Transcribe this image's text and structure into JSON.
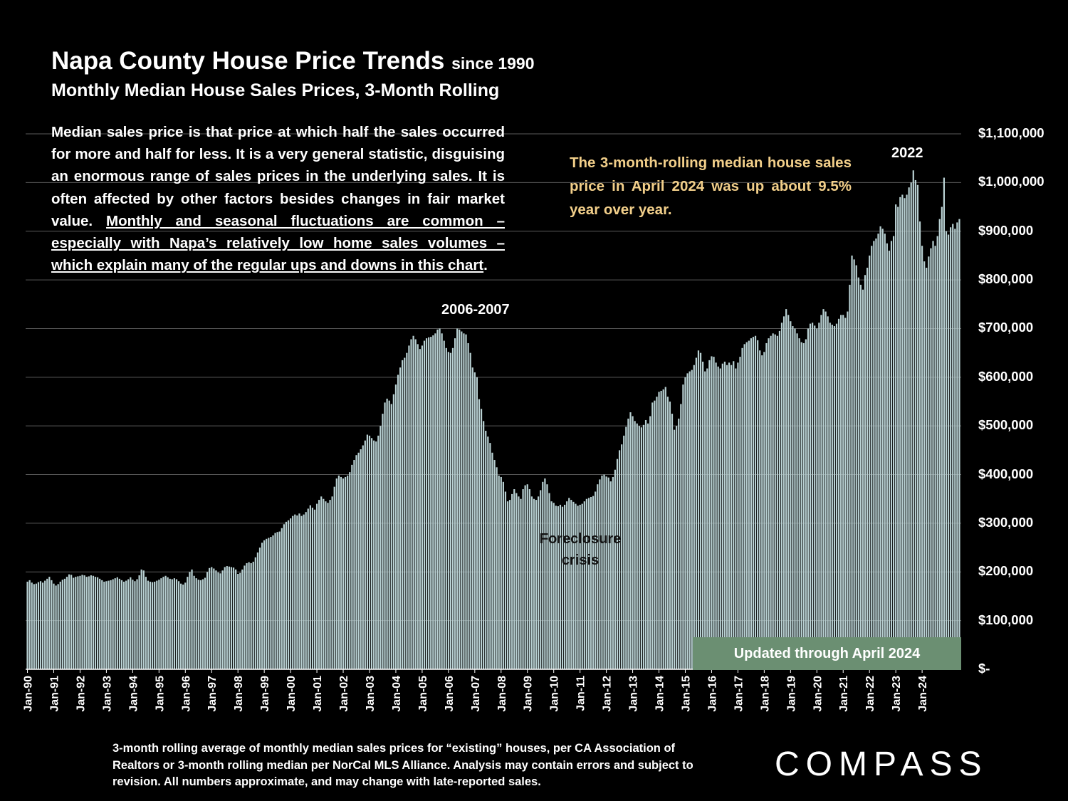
{
  "header": {
    "title": "Napa County House Price Trends",
    "title_suffix": "since 1990",
    "subtitle": "Monthly Median House Sales Prices, 3-Month Rolling"
  },
  "note": {
    "plain": "Median sales price is that price at which half the sales occurred for more and half for less. It is a very general statistic, disguising an enormous range of sales prices in the underlying sales. It is often affected by other factors besides changes in fair market value.",
    "underlined": "Monthly and seasonal fluctuations are common – especially with Napa’s relatively low home sales volumes – which explain many of the regular ups and downs in this chart",
    "end": "."
  },
  "callout": "The 3-month-rolling median house sales price in April 2024 was up about 9.5% year over year.",
  "annotations": {
    "peak_2006": "2006-2007",
    "peak_2022": "2022",
    "foreclosure": "Foreclosure crisis",
    "updated": "Updated through April 2024"
  },
  "footnote": "3-month rolling average of monthly median sales prices for “existing” houses, per CA Association of Realtors or 3-month rolling median per NorCal MLS Alliance. Analysis may contain errors and subject to revision. All numbers approximate, and may change with late-reported sales.",
  "logo": "COMPASS",
  "colors": {
    "background": "#000000",
    "bar": "#b9d1d3",
    "callout": "#f2cf8a",
    "updated_box": "#6b8f72"
  },
  "chart_data": {
    "type": "bar",
    "title": "Napa County House Price Trends since 1990",
    "subtitle": "Monthly Median House Sales Prices, 3-Month Rolling",
    "xlabel": "",
    "ylabel": "",
    "ylim": [
      0,
      1100000
    ],
    "grid": true,
    "x_start": "Jan-90",
    "x_end": "Apr-24",
    "x_ticks": [
      "Jan-90",
      "Jan-91",
      "Jan-92",
      "Jan-93",
      "Jan-94",
      "Jan-95",
      "Jan-96",
      "Jan-97",
      "Jan-98",
      "Jan-99",
      "Jan-00",
      "Jan-01",
      "Jan-02",
      "Jan-03",
      "Jan-04",
      "Jan-05",
      "Jan-06",
      "Jan-07",
      "Jan-08",
      "Jan-09",
      "Jan-10",
      "Jan-11",
      "Jan-12",
      "Jan-13",
      "Jan-14",
      "Jan-15",
      "Jan-16",
      "Jan-17",
      "Jan-18",
      "Jan-19",
      "Jan-20",
      "Jan-21",
      "Jan-22",
      "Jan-23",
      "Jan-24"
    ],
    "y_ticks": [
      "$-",
      "$100,000",
      "$200,000",
      "$300,000",
      "$400,000",
      "$500,000",
      "$600,000",
      "$700,000",
      "$800,000",
      "$900,000",
      "$1,000,000",
      "$1,100,000"
    ],
    "y_tick_values": [
      0,
      100000,
      200000,
      300000,
      400000,
      500000,
      600000,
      700000,
      800000,
      900000,
      1000000,
      1100000
    ],
    "values": [
      180000,
      183000,
      178000,
      175000,
      176000,
      179000,
      181000,
      178000,
      182000,
      186000,
      190000,
      183000,
      176000,
      172000,
      175000,
      180000,
      184000,
      186000,
      190000,
      195000,
      194000,
      188000,
      190000,
      191000,
      192000,
      194000,
      193000,
      190000,
      191000,
      193000,
      192000,
      190000,
      189000,
      186000,
      183000,
      180000,
      181000,
      182000,
      183000,
      185000,
      187000,
      189000,
      186000,
      183000,
      180000,
      182000,
      185000,
      189000,
      184000,
      181000,
      185000,
      193000,
      205000,
      203000,
      190000,
      182000,
      180000,
      179000,
      180000,
      182000,
      184000,
      187000,
      190000,
      192000,
      189000,
      186000,
      185000,
      187000,
      185000,
      181000,
      176000,
      174000,
      178000,
      190000,
      200000,
      205000,
      192000,
      187000,
      184000,
      183000,
      185000,
      188000,
      200000,
      208000,
      210000,
      207000,
      203000,
      199000,
      197000,
      203000,
      210000,
      212000,
      211000,
      210000,
      209000,
      205000,
      196000,
      198000,
      205000,
      213000,
      218000,
      220000,
      218000,
      221000,
      230000,
      240000,
      250000,
      260000,
      265000,
      268000,
      270000,
      272000,
      275000,
      280000,
      282000,
      283000,
      290000,
      298000,
      303000,
      306000,
      310000,
      315000,
      318000,
      316000,
      320000,
      315000,
      318000,
      323000,
      330000,
      337000,
      332000,
      328000,
      340000,
      348000,
      355000,
      350000,
      345000,
      342000,
      348000,
      355000,
      375000,
      392000,
      398000,
      395000,
      392000,
      395000,
      398000,
      405000,
      420000,
      430000,
      440000,
      445000,
      452000,
      460000,
      470000,
      482000,
      480000,
      475000,
      470000,
      468000,
      480000,
      500000,
      525000,
      548000,
      556000,
      552000,
      545000,
      565000,
      585000,
      605000,
      620000,
      635000,
      640000,
      650000,
      665000,
      678000,
      685000,
      678000,
      668000,
      658000,
      665000,
      675000,
      680000,
      682000,
      683000,
      686000,
      690000,
      698000,
      700000,
      690000,
      675000,
      660000,
      652000,
      650000,
      660000,
      680000,
      700000,
      698000,
      694000,
      690000,
      688000,
      670000,
      650000,
      620000,
      610000,
      600000,
      555000,
      535000,
      510000,
      490000,
      478000,
      465000,
      445000,
      430000,
      415000,
      398000,
      395000,
      385000,
      365000,
      345000,
      348000,
      360000,
      370000,
      362000,
      355000,
      350000,
      370000,
      378000,
      380000,
      370000,
      355000,
      350000,
      348000,
      355000,
      368000,
      385000,
      392000,
      380000,
      362000,
      345000,
      342000,
      336000,
      335000,
      338000,
      334000,
      338000,
      345000,
      352000,
      348000,
      344000,
      340000,
      336000,
      338000,
      340000,
      345000,
      350000,
      352000,
      354000,
      356000,
      365000,
      380000,
      390000,
      398000,
      400000,
      396000,
      394000,
      386000,
      395000,
      410000,
      432000,
      450000,
      462000,
      480000,
      498000,
      515000,
      528000,
      520000,
      510000,
      505000,
      500000,
      497000,
      502000,
      512000,
      505000,
      520000,
      548000,
      552000,
      560000,
      570000,
      572000,
      575000,
      580000,
      560000,
      550000,
      525000,
      492000,
      500000,
      515000,
      545000,
      585000,
      600000,
      608000,
      612000,
      615000,
      625000,
      640000,
      655000,
      650000,
      632000,
      612000,
      618000,
      635000,
      643000,
      642000,
      630000,
      622000,
      618000,
      628000,
      632000,
      625000,
      630000,
      625000,
      633000,
      618000,
      630000,
      642000,
      660000,
      668000,
      672000,
      675000,
      680000,
      683000,
      685000,
      676000,
      655000,
      645000,
      652000,
      670000,
      680000,
      685000,
      690000,
      688000,
      685000,
      695000,
      712000,
      725000,
      740000,
      728000,
      715000,
      705000,
      700000,
      690000,
      680000,
      672000,
      670000,
      678000,
      700000,
      710000,
      712000,
      706000,
      700000,
      712000,
      728000,
      740000,
      735000,
      725000,
      712000,
      708000,
      705000,
      710000,
      720000,
      728000,
      728000,
      722000,
      735000,
      790000,
      850000,
      842000,
      830000,
      805000,
      790000,
      780000,
      810000,
      825000,
      850000,
      870000,
      880000,
      885000,
      895000,
      910000,
      905000,
      895000,
      875000,
      860000,
      880000,
      890000,
      955000,
      950000,
      970000,
      975000,
      968000,
      975000,
      990000,
      1000000,
      1025000,
      1005000,
      995000,
      920000,
      870000,
      838000,
      825000,
      848000,
      865000,
      880000,
      870000,
      890000,
      925000,
      950000,
      1010000,
      900000,
      893000,
      908000,
      915000,
      905000,
      918000,
      925000
    ]
  }
}
